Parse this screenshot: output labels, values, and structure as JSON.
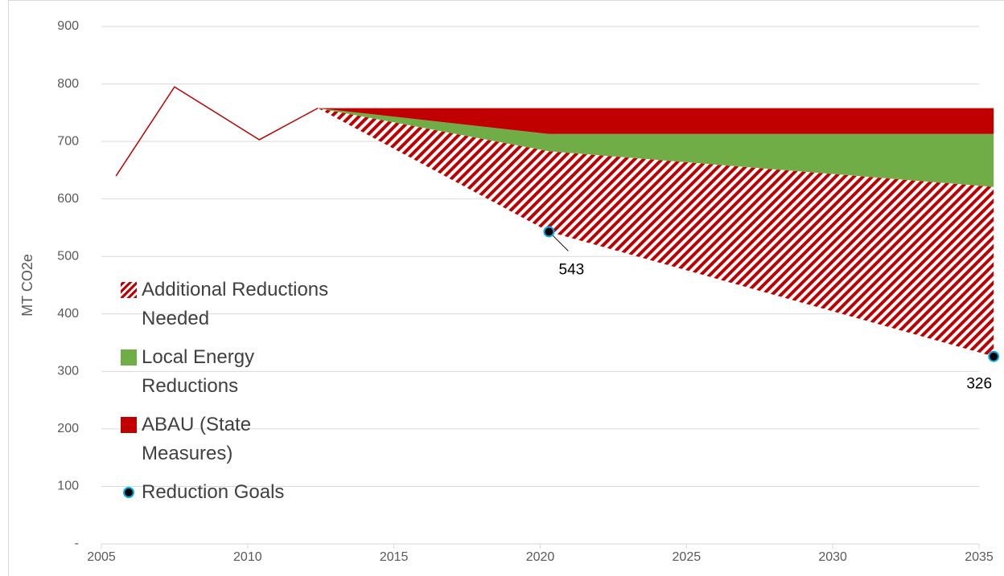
{
  "chart_data": {
    "type": "area",
    "ylabel": "MT CO2e",
    "xlim": [
      2005,
      2035
    ],
    "xticks": [
      2005,
      2010,
      2015,
      2020,
      2025,
      2030,
      2035
    ],
    "ylim": [
      0,
      900
    ],
    "yticks": [
      {
        "value": 0,
        "label": "-"
      },
      100,
      200,
      300,
      400,
      500,
      600,
      700,
      800,
      900
    ],
    "grid": true,
    "history": {
      "x": [
        2005.5,
        2007.5,
        2010.4,
        2012.4
      ],
      "values": [
        640,
        795,
        703,
        758
      ],
      "color": "#c00000"
    },
    "x": [
      2012.4,
      2020.3,
      2035.5
    ],
    "series": [
      {
        "name": "Additional Reductions Needed",
        "color": "#c00000",
        "pattern": "hatch",
        "values": [
          0,
          140,
          295
        ]
      },
      {
        "name": "Local Energy Reductions",
        "color": "#70ad47",
        "values": [
          0,
          30,
          92
        ]
      },
      {
        "name": "ABAU (State Measures)",
        "color": "#c00000",
        "values": [
          0,
          45,
          45
        ]
      }
    ],
    "goals": {
      "name": "Reduction Goals",
      "color": "#000000",
      "edge": "#00b0f0",
      "x": [
        2020.3,
        2035.5
      ],
      "values": [
        543,
        326
      ]
    }
  }
}
